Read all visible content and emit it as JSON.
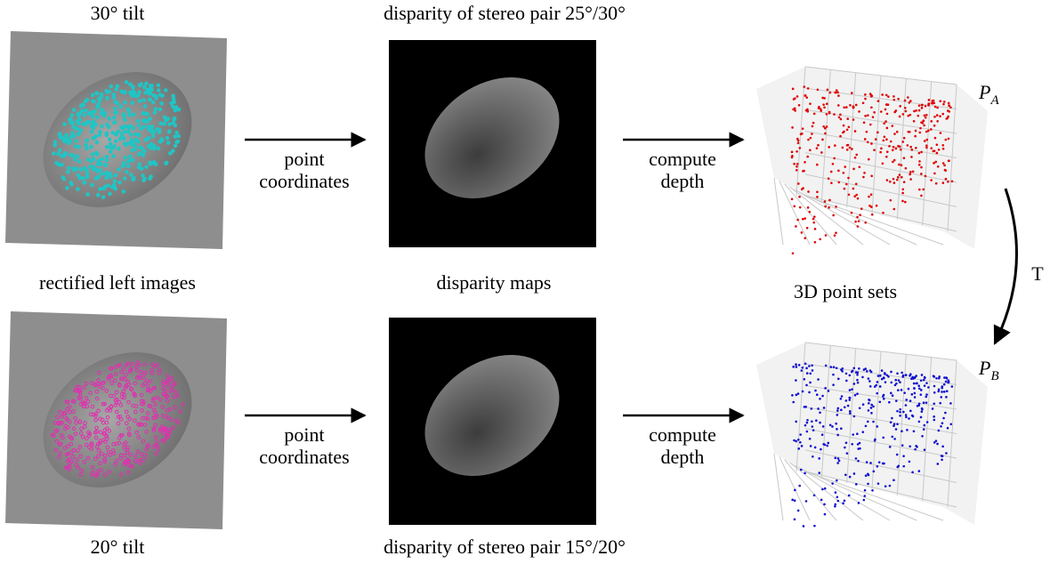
{
  "top_row": {
    "image_label": "30° tilt",
    "disparity_label": "disparity of stereo pair 25°/30°",
    "arrow_1_label": [
      "point",
      "coordinates"
    ],
    "arrow_2_label": [
      "compute",
      "depth"
    ],
    "point_set_label": {
      "base": "P",
      "sub": "A"
    }
  },
  "row_labels": {
    "images": "rectified left images",
    "disparity": "disparity maps",
    "point_sets": "3D point sets"
  },
  "transform_label": "T",
  "bottom_row": {
    "image_label": "20° tilt",
    "disparity_label": "disparity of stereo pair 15°/20°",
    "arrow_1_label": [
      "point",
      "coordinates"
    ],
    "arrow_2_label": [
      "compute",
      "depth"
    ],
    "point_set_label": {
      "base": "P",
      "sub": "B"
    }
  }
}
